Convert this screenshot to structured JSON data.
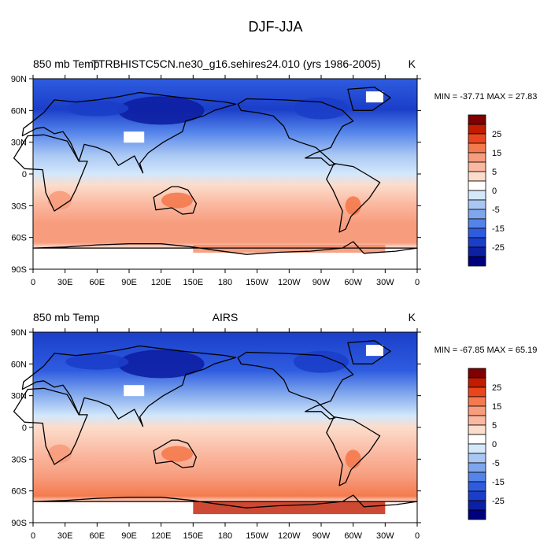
{
  "figure_title": "DJF-JJA",
  "chart_data": [
    {
      "type": "heatmap",
      "left_title": "850 mb Temp",
      "center_title": "TTRBHISTC5CN.ne30_g16.sehires24.010 (yrs 1986-2005)",
      "units": "K",
      "minmax_text": "MIN = -37.71 MAX =  27.83",
      "min": -37.71,
      "max": 27.83,
      "xticks": [
        "0",
        "30E",
        "60E",
        "90E",
        "120E",
        "150E",
        "180",
        "150W",
        "120W",
        "90W",
        "60W",
        "30W",
        "0"
      ],
      "yticks": [
        "90N",
        "60N",
        "30N",
        "0",
        "30S",
        "60S",
        "90S"
      ],
      "colorbar_labels": [
        "25",
        "15",
        "5",
        "0",
        "-5",
        "-15",
        "-25"
      ],
      "colorbar_colors": [
        "#7f0000",
        "#c11b00",
        "#e8461e",
        "#f47a4e",
        "#f79c7d",
        "#fab8a0",
        "#fcdcca",
        "#ffffff",
        "#d3e8fb",
        "#a9c7f3",
        "#7fa6ec",
        "#5484ea",
        "#2e5ce0",
        "#1b3ec9",
        "#0d1fa3",
        "#00007f"
      ]
    },
    {
      "type": "heatmap",
      "left_title": "850 mb Temp",
      "center_title": "AIRS",
      "units": "K",
      "minmax_text": "MIN = -67.85 MAX =  65.19",
      "min": -67.85,
      "max": 65.19,
      "xticks": [
        "0",
        "30E",
        "60E",
        "90E",
        "120E",
        "150E",
        "180",
        "150W",
        "120W",
        "90W",
        "60W",
        "30W",
        "0"
      ],
      "yticks": [
        "90N",
        "60N",
        "30N",
        "0",
        "30S",
        "60S",
        "90S"
      ],
      "colorbar_labels": [
        "25",
        "15",
        "5",
        "0",
        "-5",
        "-15",
        "-25"
      ],
      "colorbar_colors": [
        "#7f0000",
        "#c11b00",
        "#e8461e",
        "#f47a4e",
        "#f79c7d",
        "#fab8a0",
        "#fcdcca",
        "#ffffff",
        "#d3e8fb",
        "#a9c7f3",
        "#7fa6ec",
        "#5484ea",
        "#2e5ce0",
        "#1b3ec9",
        "#0d1fa3",
        "#00007f"
      ]
    }
  ]
}
